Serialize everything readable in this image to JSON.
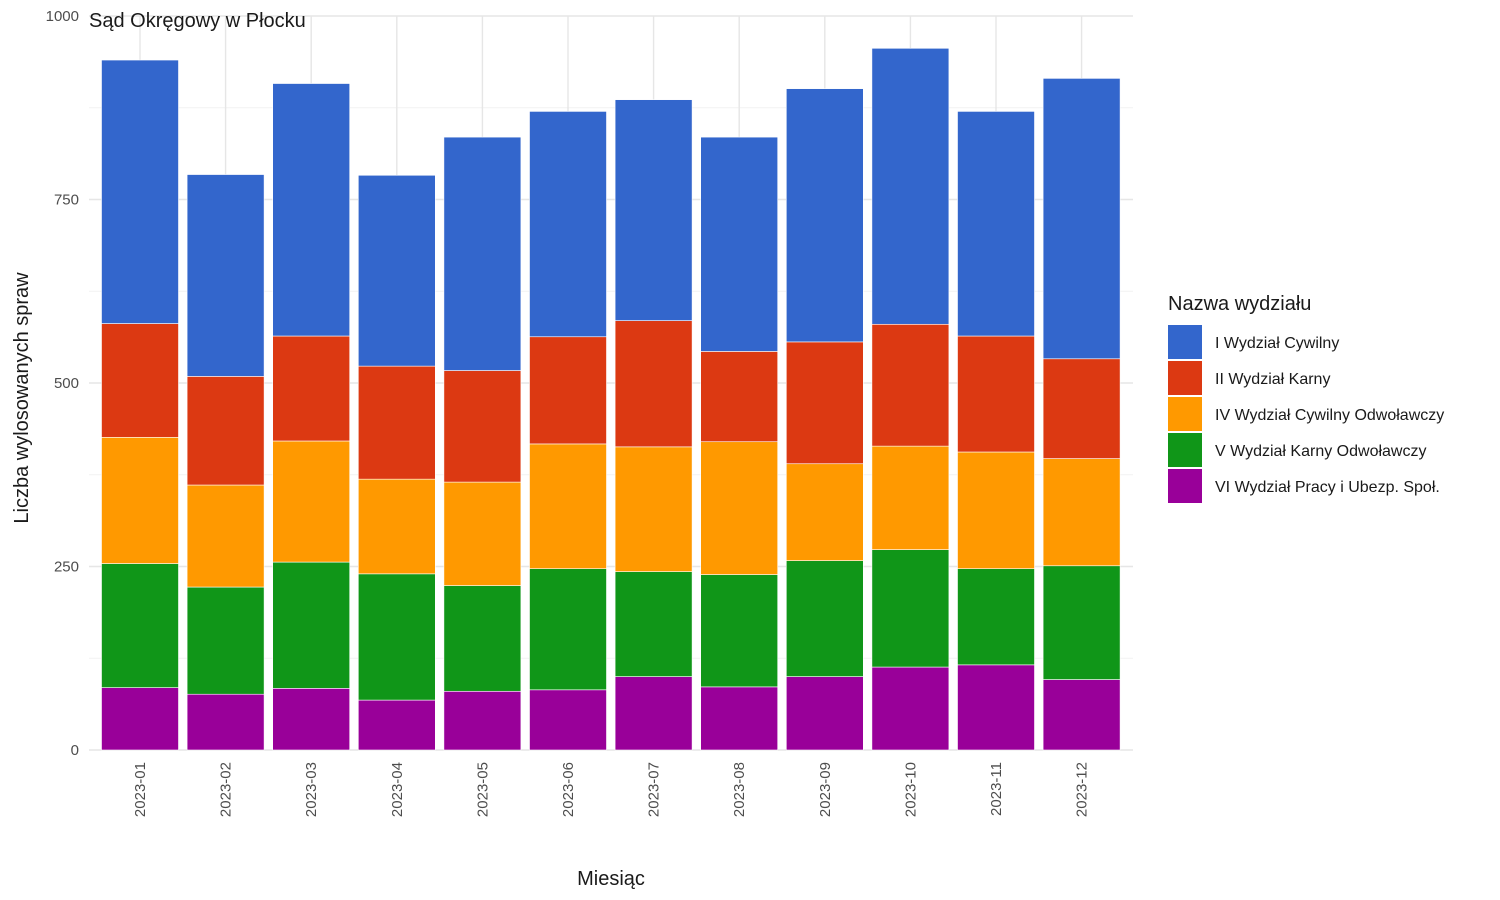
{
  "chart_data": {
    "type": "bar",
    "stacked": true,
    "title": "Sąd Okręgowy w Płocku",
    "xlabel": "Miesiąc",
    "ylabel": "Liczba wylosowanych spraw",
    "ylim": [
      0,
      1000
    ],
    "yticks": [
      "0",
      "250",
      "500",
      "750",
      "1000"
    ],
    "grid": true,
    "legend_position": "right",
    "legend_title": "Nazwa wydziału",
    "categories": [
      "2023-01",
      "2023-02",
      "2023-03",
      "2023-04",
      "2023-05",
      "2023-06",
      "2023-07",
      "2023-08",
      "2023-09",
      "2023-10",
      "2023-11",
      "2023-12"
    ],
    "series": [
      {
        "name": "I Wydział Cywilny",
        "color": "#3366CC",
        "values": [
          359,
          275,
          344,
          260,
          318,
          307,
          301,
          292,
          345,
          376,
          306,
          382
        ]
      },
      {
        "name": "II Wydział Karny",
        "color": "#DC3912",
        "values": [
          155,
          148,
          143,
          154,
          152,
          146,
          172,
          123,
          166,
          166,
          158,
          136
        ]
      },
      {
        "name": "IV Wydział Cywilny Odwoławczy",
        "color": "#FF9900",
        "values": [
          172,
          139,
          165,
          129,
          141,
          170,
          170,
          181,
          132,
          141,
          159,
          146
        ]
      },
      {
        "name": "V Wydział Karny Odwoławczy",
        "color": "#109618",
        "values": [
          169,
          146,
          172,
          172,
          144,
          165,
          143,
          153,
          158,
          160,
          131,
          155
        ]
      },
      {
        "name": "VI Wydział Pracy i Ubezp. Społ.",
        "color": "#990099",
        "values": [
          85,
          76,
          84,
          68,
          80,
          82,
          100,
          86,
          100,
          113,
          116,
          96
        ]
      }
    ]
  }
}
